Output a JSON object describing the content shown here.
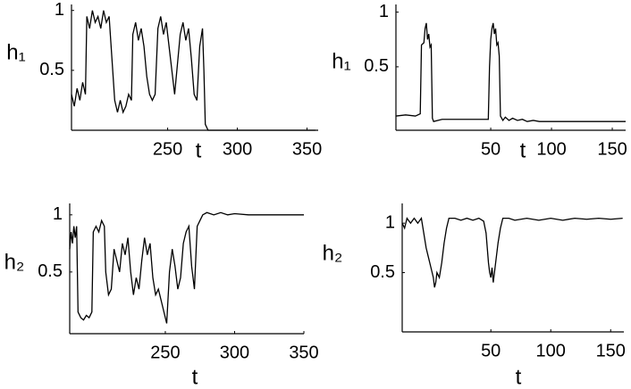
{
  "chart_data": [
    {
      "type": "line",
      "ylabel": "h₁",
      "xlabel": "t",
      "color": "#000000",
      "xlim": [
        181,
        358
      ],
      "ylim": [
        0,
        1.05
      ],
      "xticks": [
        250,
        300,
        350
      ],
      "yticks": [
        0.5,
        1
      ],
      "x": [
        181,
        183,
        185,
        187,
        189,
        191,
        192,
        194,
        196,
        198,
        200,
        202,
        204,
        206,
        208,
        210,
        212,
        214,
        216,
        218,
        220,
        222,
        224,
        225,
        227,
        229,
        231,
        233,
        235,
        237,
        239,
        241,
        243,
        245,
        247,
        249,
        251,
        253,
        255,
        257,
        259,
        261,
        263,
        265,
        267,
        269,
        271,
        273,
        275,
        276,
        277,
        279,
        300,
        330,
        356
      ],
      "values": [
        0.3,
        0.2,
        0.35,
        0.25,
        0.4,
        0.3,
        0.95,
        0.85,
        1.0,
        0.9,
        0.95,
        0.85,
        1.0,
        0.9,
        0.95,
        0.6,
        0.25,
        0.15,
        0.25,
        0.15,
        0.2,
        0.3,
        0.25,
        0.8,
        0.9,
        0.75,
        0.85,
        0.7,
        0.45,
        0.3,
        0.25,
        0.3,
        0.85,
        0.95,
        0.8,
        0.9,
        0.7,
        0.5,
        0.3,
        0.55,
        0.8,
        0.9,
        0.75,
        0.85,
        0.6,
        0.3,
        0.25,
        0.7,
        0.85,
        0.5,
        0.05,
        0,
        0,
        0,
        0
      ]
    },
    {
      "type": "line",
      "ylabel": "h₁",
      "xlabel": "t",
      "color": "#000000",
      "xlim": [
        -28,
        161
      ],
      "ylim": [
        -0.08,
        1.07
      ],
      "xticks": [
        50,
        100,
        150
      ],
      "yticks": [
        0.5,
        1
      ],
      "x": [
        -28,
        -20,
        -12,
        -8,
        -7,
        -5,
        -4,
        -3,
        -2,
        -1,
        0,
        1,
        2,
        3,
        10,
        20,
        30,
        40,
        48,
        49,
        50,
        51,
        52,
        53,
        54,
        55,
        56,
        57,
        58,
        60,
        62,
        65,
        68,
        72,
        76,
        80,
        85,
        90,
        100,
        130,
        161
      ],
      "values": [
        0.05,
        0.06,
        0.05,
        0.07,
        0.7,
        0.72,
        0.85,
        0.9,
        0.75,
        0.8,
        0.68,
        0.7,
        0.03,
        0.0,
        0.02,
        0.02,
        0.02,
        0.02,
        0.02,
        0.5,
        0.75,
        0.85,
        0.9,
        0.8,
        0.85,
        0.7,
        0.72,
        0.6,
        0.05,
        0.01,
        0.04,
        0.01,
        0.03,
        0.01,
        0.02,
        0,
        0.01,
        0,
        0,
        0,
        0
      ]
    },
    {
      "type": "line",
      "ylabel": "h₂",
      "xlabel": "t",
      "color": "#000000",
      "xlim": [
        181,
        350
      ],
      "ylim": [
        -0.04,
        1.1
      ],
      "xticks": [
        250,
        300,
        350
      ],
      "yticks": [
        0.5,
        1
      ],
      "x": [
        181,
        182,
        183,
        184,
        185,
        186,
        187,
        189,
        191,
        193,
        195,
        197,
        198,
        200,
        202,
        204,
        206,
        207,
        209,
        211,
        213,
        215,
        217,
        219,
        221,
        223,
        225,
        227,
        229,
        231,
        233,
        235,
        237,
        239,
        241,
        243,
        245,
        247,
        249,
        251,
        253,
        255,
        257,
        259,
        261,
        263,
        265,
        267,
        269,
        271,
        273,
        275,
        277,
        280,
        285,
        290,
        295,
        300,
        310,
        320,
        330,
        340,
        350
      ],
      "values": [
        0.7,
        0.85,
        0.75,
        0.9,
        0.8,
        0.9,
        0.15,
        0.1,
        0.08,
        0.12,
        0.1,
        0.15,
        0.85,
        0.9,
        0.85,
        0.95,
        0.9,
        0.5,
        0.3,
        0.35,
        0.7,
        0.6,
        0.5,
        0.75,
        0.65,
        0.8,
        0.5,
        0.3,
        0.45,
        0.35,
        0.6,
        0.8,
        0.65,
        0.75,
        0.45,
        0.3,
        0.35,
        0.25,
        0.15,
        0.05,
        0.5,
        0.7,
        0.55,
        0.35,
        0.45,
        0.75,
        0.85,
        0.9,
        0.55,
        0.35,
        0.9,
        0.95,
        1.0,
        1.02,
        1.0,
        1.02,
        1.0,
        1.01,
        1.0,
        1.0,
        1.0,
        1.0,
        1.0
      ]
    },
    {
      "type": "line",
      "ylabel": "h₂",
      "xlabel": "t",
      "color": "#000000",
      "xlim": [
        -24,
        161
      ],
      "ylim": [
        -0.1,
        1.2
      ],
      "xticks": [
        50,
        100,
        150
      ],
      "yticks": [
        0.5,
        1
      ],
      "x": [
        -24,
        -22,
        -20,
        -17,
        -14,
        -11,
        -8,
        -6,
        -4,
        -2,
        0,
        2,
        3,
        4,
        5,
        7,
        9,
        11,
        13,
        15,
        20,
        25,
        30,
        35,
        40,
        44,
        46,
        48,
        49,
        50,
        51,
        52,
        53,
        54,
        56,
        58,
        60,
        65,
        70,
        80,
        90,
        100,
        110,
        120,
        130,
        140,
        150,
        160
      ],
      "values": [
        1.0,
        0.95,
        1.05,
        1.0,
        1.05,
        1.0,
        1.05,
        0.9,
        0.75,
        0.65,
        0.55,
        0.45,
        0.35,
        0.4,
        0.5,
        0.45,
        0.6,
        0.8,
        0.95,
        1.05,
        1.05,
        1.03,
        1.05,
        1.03,
        1.05,
        1.02,
        0.9,
        0.6,
        0.5,
        0.45,
        0.55,
        0.4,
        0.5,
        0.6,
        0.8,
        0.95,
        1.05,
        1.05,
        1.03,
        1.05,
        1.03,
        1.05,
        1.03,
        1.05,
        1.04,
        1.05,
        1.04,
        1.05
      ]
    }
  ]
}
